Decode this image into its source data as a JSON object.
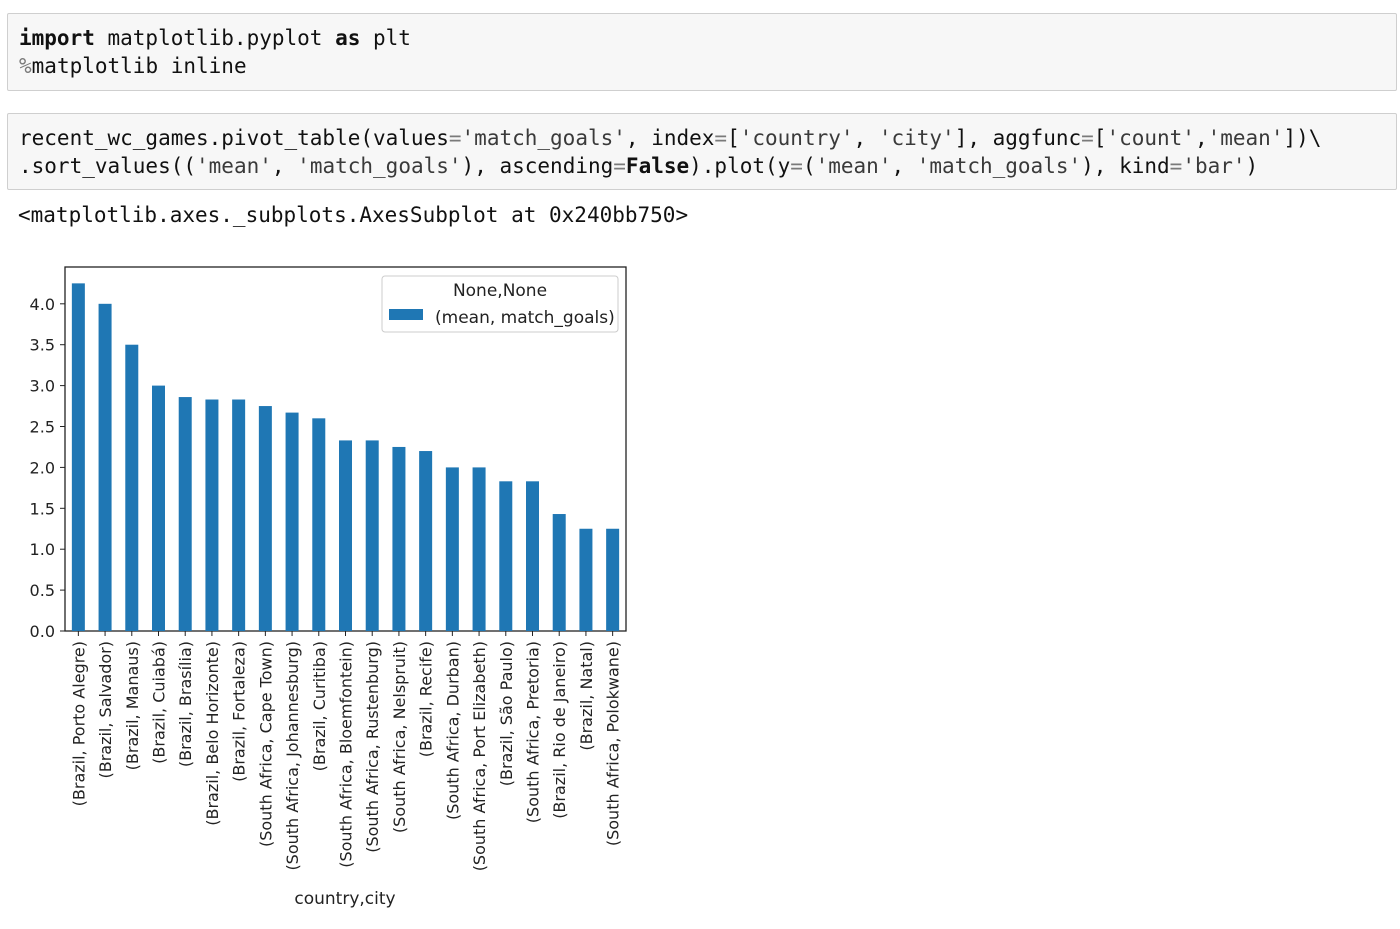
{
  "cells": [
    {
      "lines": [
        [
          {
            "t": "import",
            "c": "kw"
          },
          {
            "t": " matplotlib.pyplot "
          },
          {
            "t": "as",
            "c": "kw"
          },
          {
            "t": " plt"
          }
        ],
        [
          {
            "t": "%",
            "c": "op"
          },
          {
            "t": "matplotlib inline"
          }
        ]
      ]
    },
    {
      "lines": [
        [
          {
            "t": "recent_wc_games.pivot_table(values"
          },
          {
            "t": "=",
            "c": "op"
          },
          {
            "t": "'match_goals'",
            "c": "str"
          },
          {
            "t": ", index"
          },
          {
            "t": "=",
            "c": "op"
          },
          {
            "t": "["
          },
          {
            "t": "'country'",
            "c": "str"
          },
          {
            "t": ", "
          },
          {
            "t": "'city'",
            "c": "str"
          },
          {
            "t": "], aggfunc"
          },
          {
            "t": "=",
            "c": "op"
          },
          {
            "t": "["
          },
          {
            "t": "'count'",
            "c": "str"
          },
          {
            "t": ","
          },
          {
            "t": "'mean'",
            "c": "str"
          },
          {
            "t": "])\\"
          }
        ],
        [
          {
            "t": ".sort_values(("
          },
          {
            "t": "'mean'",
            "c": "str"
          },
          {
            "t": ", "
          },
          {
            "t": "'match_goals'",
            "c": "str"
          },
          {
            "t": "), ascending"
          },
          {
            "t": "=",
            "c": "op"
          },
          {
            "t": "False",
            "c": "kw"
          },
          {
            "t": ").plot(y"
          },
          {
            "t": "=",
            "c": "op"
          },
          {
            "t": "("
          },
          {
            "t": "'mean'",
            "c": "str"
          },
          {
            "t": ", "
          },
          {
            "t": "'match_goals'",
            "c": "str"
          },
          {
            "t": "), kind"
          },
          {
            "t": "=",
            "c": "op"
          },
          {
            "t": "'bar'",
            "c": "str"
          },
          {
            "t": ")"
          }
        ]
      ]
    }
  ],
  "output_text": "<matplotlib.axes._subplots.AxesSubplot at 0x240bb750>",
  "chart_data": {
    "type": "bar",
    "xlabel": "country,city",
    "ylabel": "",
    "ylim": [
      0,
      4.45
    ],
    "yticks": [
      "0.0",
      "0.5",
      "1.0",
      "1.5",
      "2.0",
      "2.5",
      "3.0",
      "3.5",
      "4.0"
    ],
    "legend": {
      "title": "None,None",
      "position": "top-right"
    },
    "color": "#1f77b4",
    "categories": [
      "(Brazil, Porto Alegre)",
      "(Brazil, Salvador)",
      "(Brazil, Manaus)",
      "(Brazil, Cuiabá)",
      "(Brazil, Brasília)",
      "(Brazil, Belo Horizonte)",
      "(Brazil, Fortaleza)",
      "(South Africa, Cape Town)",
      "(South Africa, Johannesburg)",
      "(Brazil, Curitiba)",
      "(South Africa, Bloemfontein)",
      "(South Africa, Rustenburg)",
      "(South Africa, Nelspruit)",
      "(Brazil, Recife)",
      "(South Africa, Durban)",
      "(South Africa, Port Elizabeth)",
      "(Brazil, São Paulo)",
      "(South Africa, Pretoria)",
      "(Brazil, Rio de Janeiro)",
      "(Brazil, Natal)",
      "(South Africa, Polokwane)"
    ],
    "series": [
      {
        "name": "(mean, match_goals)",
        "values": [
          4.25,
          4.0,
          3.5,
          3.0,
          2.86,
          2.83,
          2.83,
          2.75,
          2.67,
          2.6,
          2.33,
          2.33,
          2.25,
          2.2,
          2.0,
          2.0,
          1.83,
          1.83,
          1.43,
          1.25,
          1.25
        ]
      }
    ]
  }
}
